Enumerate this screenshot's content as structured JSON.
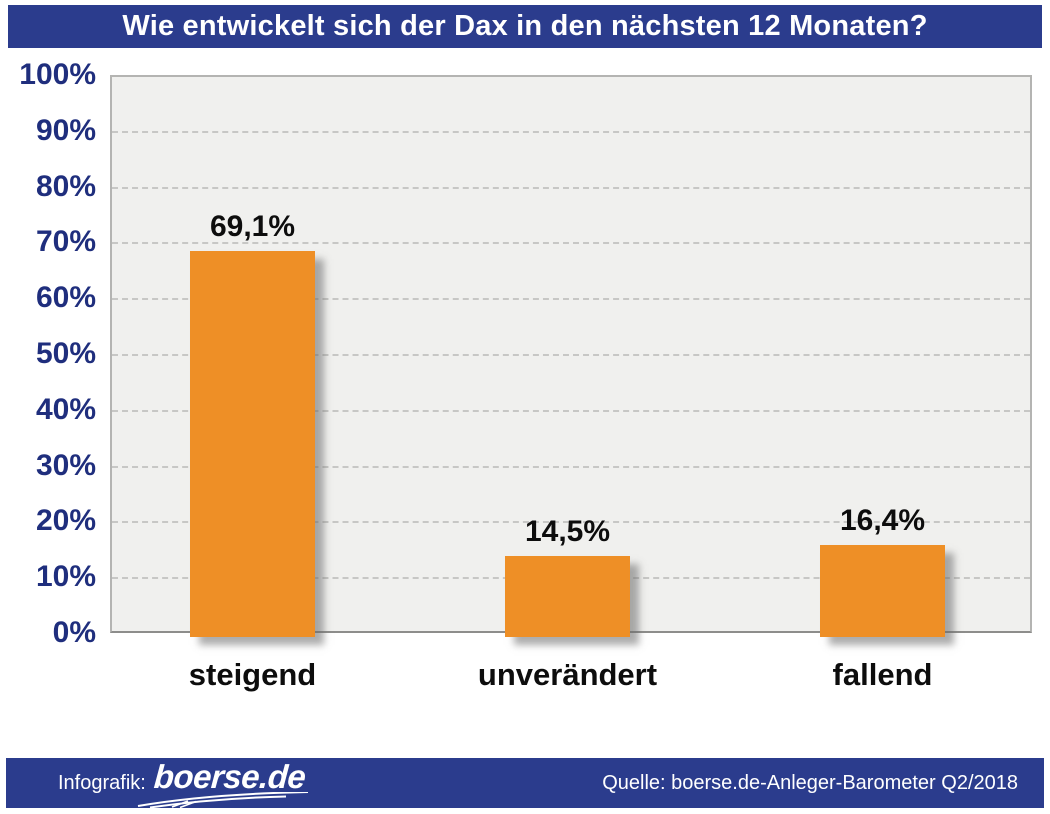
{
  "title": "Wie entwickelt sich der Dax in den nächsten 12 Monaten?",
  "chart_data": {
    "type": "bar",
    "title": "Wie entwickelt sich der Dax in den nächsten 12 Monaten?",
    "categories": [
      "steigend",
      "unverändert",
      "fallend"
    ],
    "values": [
      69.1,
      14.5,
      16.4
    ],
    "value_labels": [
      "69,1%",
      "14,5%",
      "16,4%"
    ],
    "yticks": [
      "0%",
      "10%",
      "20%",
      "30%",
      "40%",
      "50%",
      "60%",
      "70%",
      "80%",
      "90%",
      "100%"
    ],
    "ylim": [
      0,
      100
    ],
    "xlabel": "",
    "ylabel": "",
    "grid": "horizontal dashed",
    "legend": "none",
    "bar_color": "#ee8f26"
  },
  "colors": {
    "header_blue": "#2b3c8d",
    "axis_label_blue": "#1f2e7d",
    "bar_orange": "#ee8f26",
    "plot_background": "#f0f0ee"
  },
  "footer": {
    "infografik_label": "Infografik:",
    "logo_text": "boerse.de",
    "source": "Quelle: boerse.de-Anleger-Barometer Q2/2018"
  }
}
